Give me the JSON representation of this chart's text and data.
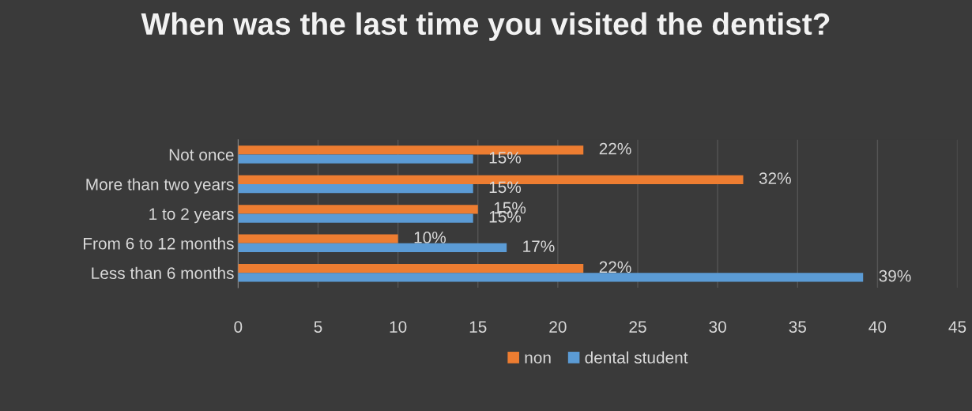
{
  "chart_data": {
    "type": "bar",
    "orientation": "horizontal",
    "title": "When was the last time you visited the dentist?",
    "categories": [
      "Not once",
      "More than two years",
      "1 to 2 years",
      "From 6 to 12 months",
      "Less than 6 months"
    ],
    "series": [
      {
        "name": "non",
        "color": "#ed7d31",
        "values": [
          21.6,
          31.6,
          15,
          10,
          21.6
        ],
        "value_labels": [
          "22%",
          "32%",
          "15%",
          "10%",
          "22%"
        ]
      },
      {
        "name": "dental student",
        "color": "#5b9bd5",
        "values": [
          14.7,
          14.7,
          14.7,
          16.8,
          39.1
        ],
        "value_labels": [
          "15%",
          "15%",
          "15%",
          "17%",
          "39%"
        ]
      }
    ],
    "xlim": [
      0,
      45
    ],
    "xticks": [
      0,
      5,
      10,
      15,
      20,
      25,
      30,
      35,
      40,
      45
    ],
    "grid": "x",
    "legend": "bottom"
  }
}
